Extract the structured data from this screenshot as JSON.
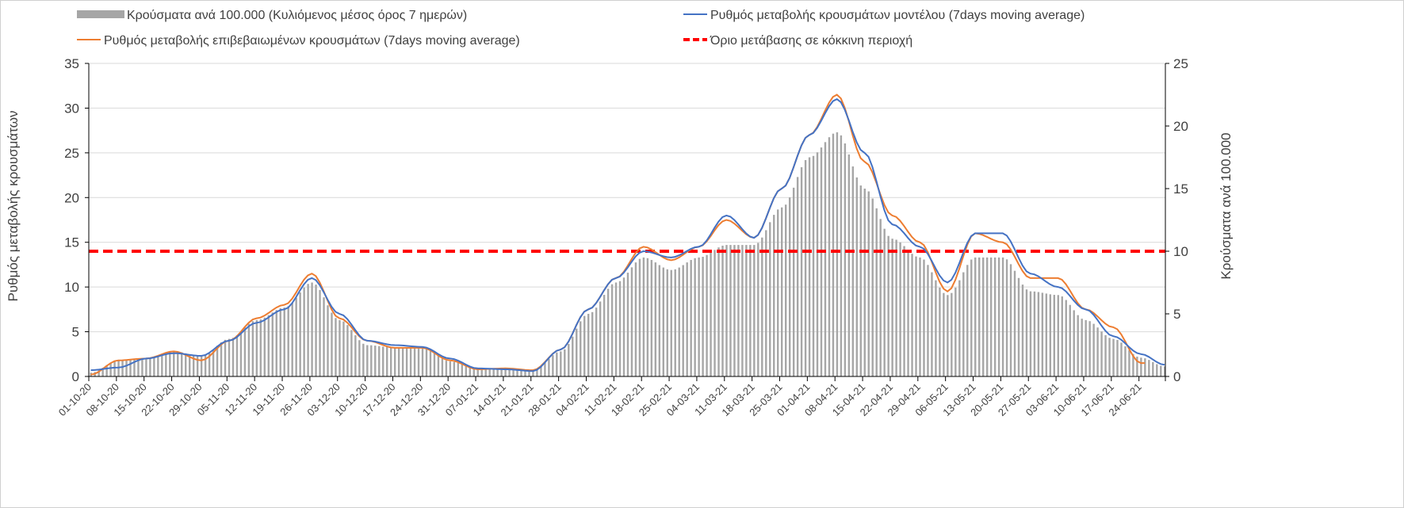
{
  "chart_data": {
    "type": "bar+line",
    "title": "",
    "legend": {
      "bars": "Κρούσματα ανά 100.000 (Κυλιόμενος μέσος όρος 7 ημερών)",
      "model": "Ρυθμός μεταβολής κρουσμάτων μοντέλου (7days moving average)",
      "confirmed": "Ρυθμός μεταβολής επιβεβαιωμένων κρουσμάτων (7days moving average)",
      "threshold": "Όριο μετάβασης σε κόκκινη περιοχή",
      "placement": "top"
    },
    "ylabel_left": "Ρυθμός μεταβολής κρουσμάτων",
    "ylabel_right": "Κρούσματα ανά 100.000",
    "ylim_left": [
      0,
      35
    ],
    "ylim_right": [
      0,
      25
    ],
    "yticks_left": [
      "0",
      "5",
      "10",
      "15",
      "20",
      "25",
      "30",
      "35"
    ],
    "yticks_right": [
      "0",
      "5",
      "10",
      "15",
      "20",
      "25"
    ],
    "grid": true,
    "threshold_left": 14,
    "colors": {
      "bars": "#a6a6a6",
      "model": "#4472c4",
      "confirmed": "#ed7d31",
      "threshold": "#ff0000"
    },
    "categories": [
      "01-10-20",
      "08-10-20",
      "15-10-20",
      "22-10-20",
      "29-10-20",
      "05-11-20",
      "12-11-20",
      "19-11-20",
      "26-11-20",
      "03-12-20",
      "10-12-20",
      "17-12-20",
      "24-12-20",
      "31-12-20",
      "07-01-21",
      "14-01-21",
      "21-01-21",
      "28-01-21",
      "04-02-21",
      "11-02-21",
      "18-02-21",
      "25-02-21",
      "04-03-21",
      "11-03-21",
      "18-03-21",
      "25-03-21",
      "01-04-21",
      "08-04-21",
      "15-04-21",
      "22-04-21",
      "29-04-21",
      "06-05-21",
      "13-05-21",
      "20-05-21",
      "27-05-21",
      "03-06-21",
      "10-06-21",
      "17-06-21",
      "24-06-21"
    ],
    "series": [
      {
        "name": "bars_cases_per_100k",
        "axis": "right",
        "values": [
          0.3,
          1.3,
          1.4,
          2.0,
          1.6,
          3.0,
          4.5,
          5.5,
          7.5,
          4.5,
          2.5,
          2.3,
          2.3,
          1.2,
          0.6,
          0.6,
          0.5,
          2.0,
          5.0,
          7.5,
          9.5,
          8.5,
          9.5,
          10.5,
          10.5,
          13.5,
          17.5,
          19.5,
          15.0,
          11.0,
          9.5,
          6.5,
          9.5,
          9.5,
          6.8,
          6.5,
          4.5,
          3.0,
          1.5
        ],
        "end_value": 0.8
      },
      {
        "name": "model",
        "axis": "left",
        "values": [
          0.7,
          1.0,
          2.0,
          2.6,
          2.3,
          4.0,
          6.0,
          7.5,
          11.0,
          7.0,
          4.0,
          3.5,
          3.3,
          2.0,
          0.9,
          0.8,
          0.6,
          3.0,
          7.5,
          11.0,
          14.0,
          13.3,
          14.5,
          18.0,
          15.5,
          21.0,
          27.0,
          31.0,
          25.0,
          17.0,
          14.5,
          10.5,
          16.0,
          16.0,
          11.5,
          10.0,
          7.5,
          4.5,
          2.5
        ],
        "end_value": 1.3
      },
      {
        "name": "confirmed",
        "axis": "left",
        "values": [
          0.2,
          1.8,
          2.0,
          2.8,
          1.8,
          4.0,
          6.5,
          8.0,
          11.5,
          6.5,
          4.0,
          3.2,
          3.2,
          1.8,
          0.8,
          0.9,
          0.7,
          3.0,
          7.5,
          11.0,
          14.5,
          13.0,
          14.5,
          17.5,
          15.5,
          21.0,
          27.0,
          31.5,
          24.0,
          18.0,
          15.0,
          9.5,
          16.0,
          15.0,
          11.0,
          11.0,
          7.5,
          5.5,
          1.5
        ],
        "end_value": null
      }
    ]
  }
}
